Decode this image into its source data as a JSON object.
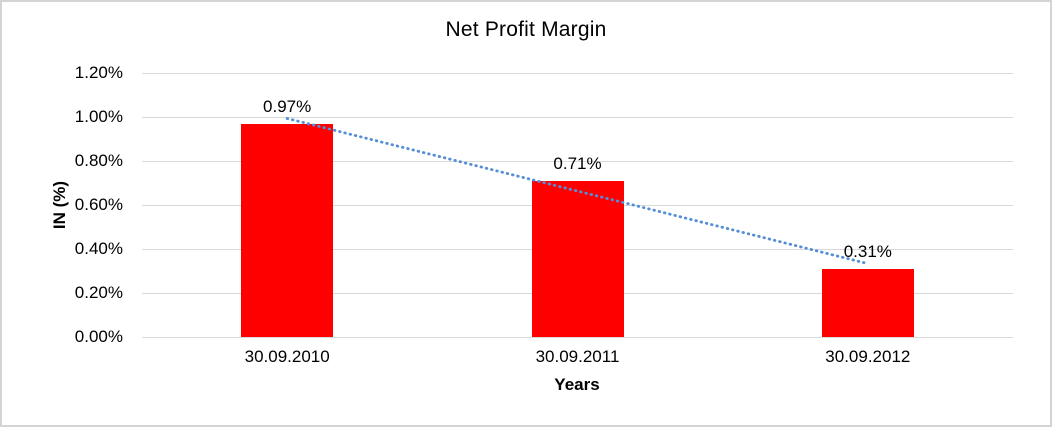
{
  "chart_data": {
    "type": "bar",
    "title": "Net Profit Margin",
    "xlabel": "Years",
    "ylabel": "IN (%)",
    "categories": [
      "30.09.2010",
      "30.09.2011",
      "30.09.2012"
    ],
    "values": [
      0.97,
      0.71,
      0.31
    ],
    "data_labels": [
      "0.97%",
      "0.71%",
      "0.31%"
    ],
    "y_ticks": [
      "0.00%",
      "0.20%",
      "0.40%",
      "0.60%",
      "0.80%",
      "1.00%",
      "1.20%"
    ],
    "ylim": [
      0,
      1.2
    ],
    "grid": true,
    "legend": "none",
    "bar_color": "#FF0000",
    "gridline_color": "#D9D9D9",
    "text_color": "#000000",
    "background": "#FFFFFF",
    "trendline": {
      "type": "linear",
      "style": "dotted",
      "color": "#558ED5"
    }
  }
}
